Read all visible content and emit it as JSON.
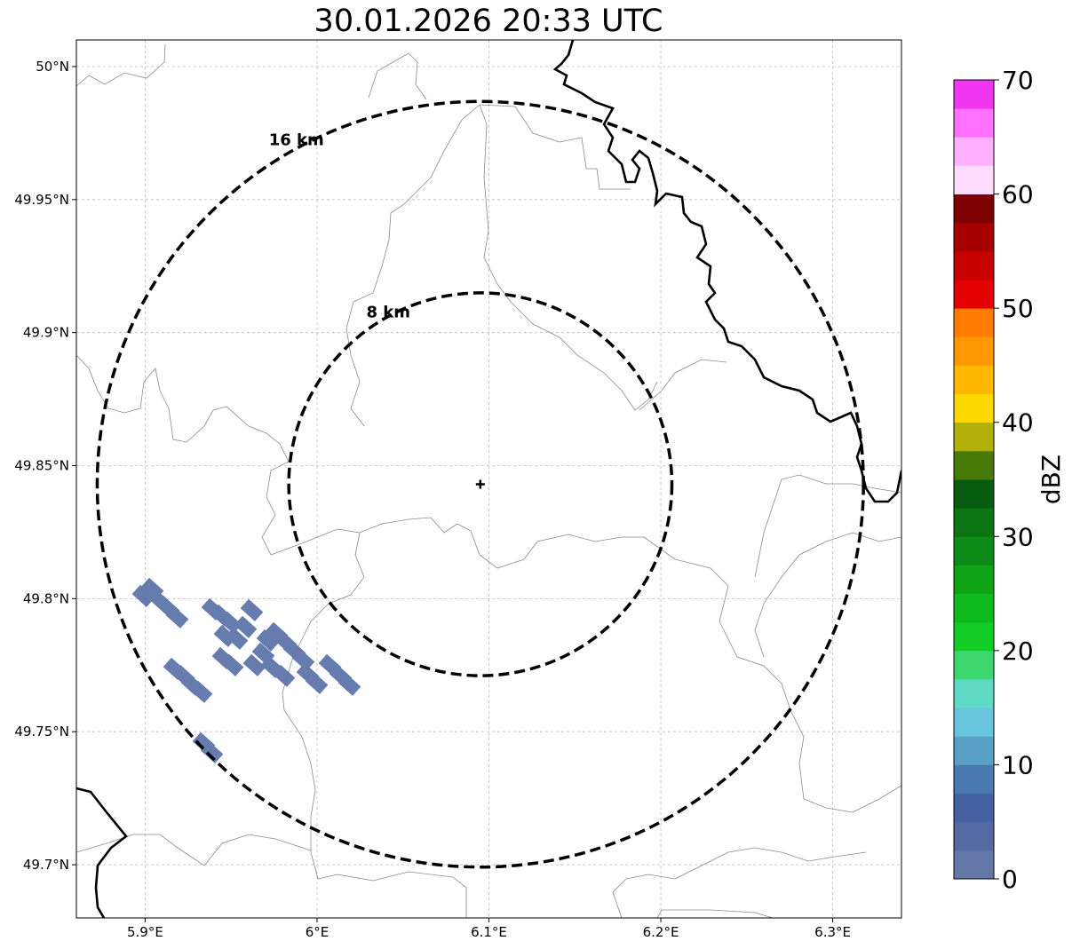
{
  "title": "30.01.2026 20:33 UTC",
  "map": {
    "extent": {
      "lon": [
        5.86,
        6.34
      ],
      "lat": [
        49.68,
        50.01
      ]
    },
    "lon_ticks": [
      {
        "value": 5.9,
        "label": "5.9°E"
      },
      {
        "value": 6.0,
        "label": "6°E"
      },
      {
        "value": 6.1,
        "label": "6.1°E"
      },
      {
        "value": 6.2,
        "label": "6.2°E"
      },
      {
        "value": 6.3,
        "label": "6.3°E"
      }
    ],
    "lat_ticks": [
      {
        "value": 50.0,
        "label": "50°N"
      },
      {
        "value": 49.95,
        "label": "49.95°N"
      },
      {
        "value": 49.9,
        "label": "49.9°N"
      },
      {
        "value": 49.85,
        "label": "49.85°N"
      },
      {
        "value": 49.8,
        "label": "49.8°N"
      },
      {
        "value": 49.75,
        "label": "49.75°N"
      },
      {
        "value": 49.7,
        "label": "49.7°N"
      }
    ],
    "grid": true,
    "radar": {
      "lon": 6.095,
      "lat": 49.843,
      "marker": "plus"
    },
    "range_rings": [
      {
        "km": 8,
        "label": "8 km"
      },
      {
        "km": 16,
        "label": "16 km"
      }
    ],
    "ring_color": "#000000",
    "echo_color": "#5a70a8"
  },
  "colorbar": {
    "label": "dBZ",
    "min": 0,
    "max": 70,
    "step": 2.5,
    "tick_labels": [
      "0",
      "10",
      "20",
      "30",
      "40",
      "50",
      "60",
      "70"
    ],
    "colors": [
      "#6577a7",
      "#5568a2",
      "#4560a3",
      "#4a78b0",
      "#58a0c6",
      "#66c4dc",
      "#5fd8c4",
      "#3cd66e",
      "#12cd26",
      "#0fba1d",
      "#0ea416",
      "#0c8c16",
      "#0a7512",
      "#065d0f",
      "#487a0a",
      "#b0b008",
      "#ffd800",
      "#ffb700",
      "#ff9800",
      "#ff7c00",
      "#e30000",
      "#c70000",
      "#a70000",
      "#7e0000",
      "#ffdcff",
      "#ffb0ff",
      "#ff70ff",
      "#f036f0"
    ]
  }
}
